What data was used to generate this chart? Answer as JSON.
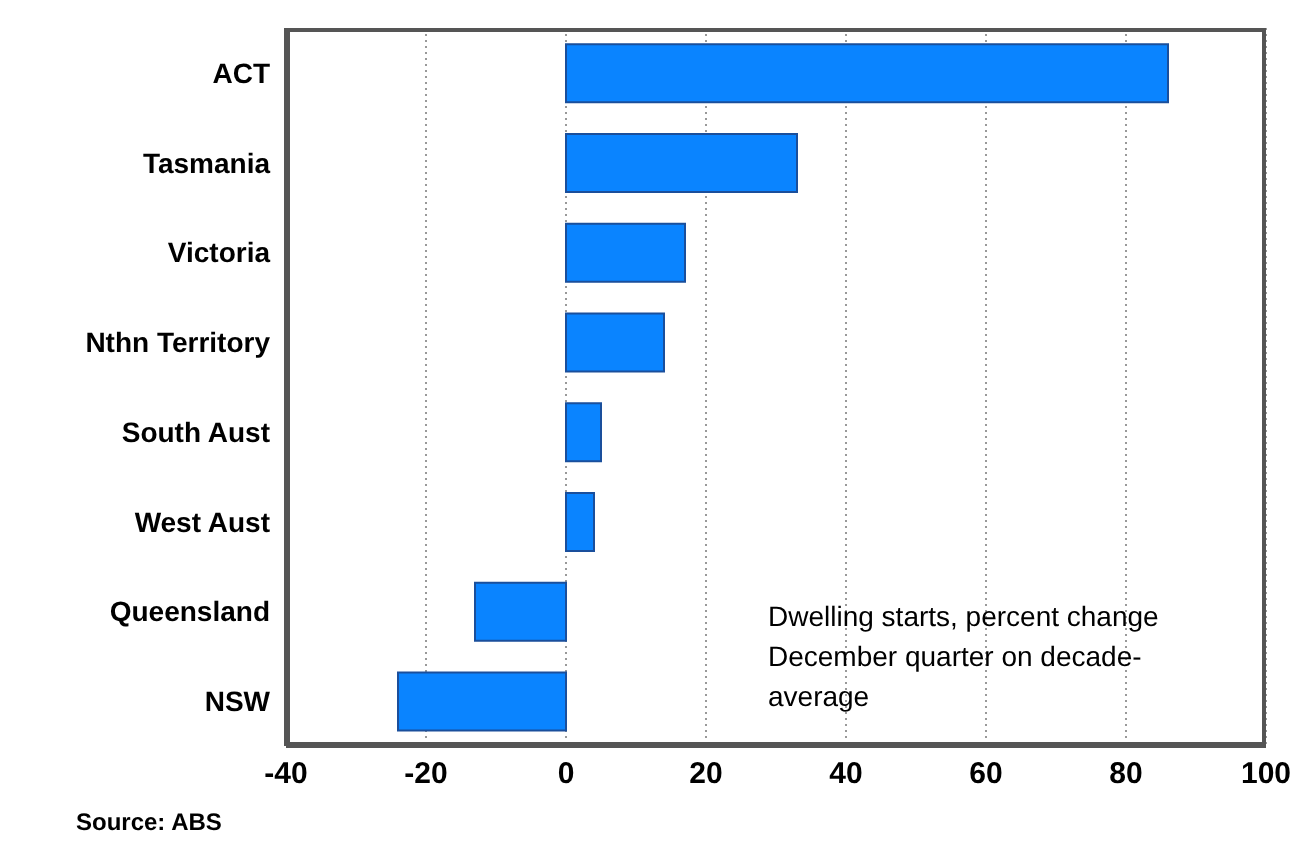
{
  "chart_data": {
    "type": "bar",
    "orientation": "horizontal",
    "categories": [
      "ACT",
      "Tasmania",
      "Victoria",
      "Nthn Territory",
      "South Aust",
      "West Aust",
      "Queensland",
      "NSW"
    ],
    "values": [
      86,
      33,
      17,
      14,
      5,
      4,
      -13,
      -24
    ],
    "color": "#0a84ff",
    "xlim": [
      -40,
      100
    ],
    "xticks": [
      -40,
      -20,
      0,
      20,
      40,
      60,
      80,
      100
    ],
    "grid": "x",
    "annotations": [
      "Dwelling starts, percent change December quarter on decade-average",
      "Source: ABS"
    ]
  }
}
